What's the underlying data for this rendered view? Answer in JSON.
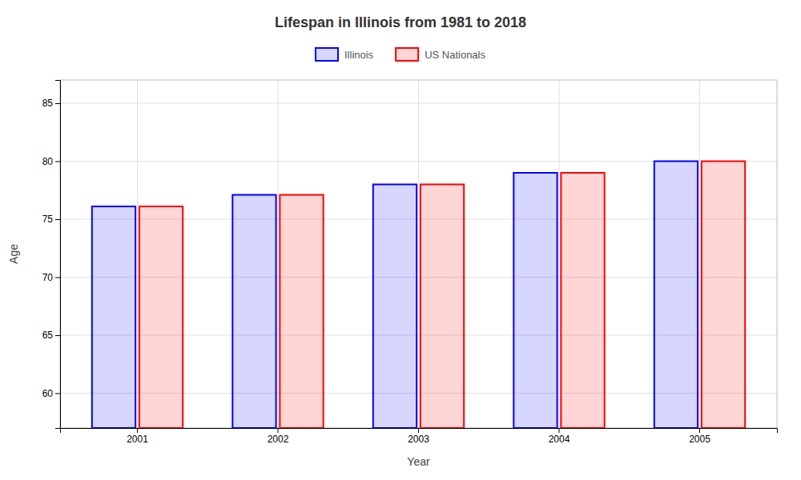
{
  "chart_data": {
    "type": "bar",
    "title": "Lifespan in Illinois from 1981 to 2018",
    "xlabel": "Year",
    "ylabel": "Age",
    "categories": [
      "2001",
      "2002",
      "2003",
      "2004",
      "2005"
    ],
    "series": [
      {
        "name": "Illinois",
        "color": "#0000ff",
        "values": [
          76.1,
          77.1,
          78.0,
          79.0,
          80.0
        ]
      },
      {
        "name": "US Nationals",
        "color": "#ff0000",
        "values": [
          76.1,
          77.1,
          78.0,
          79.0,
          80.0
        ]
      }
    ],
    "ylim": [
      57,
      87
    ],
    "yticks": [
      60,
      65,
      70,
      75,
      80,
      85
    ],
    "grid": true,
    "legend": "top"
  }
}
